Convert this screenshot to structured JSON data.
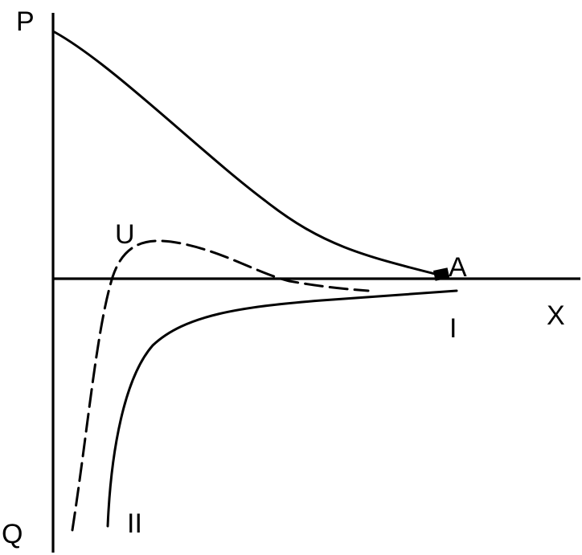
{
  "labels": {
    "p_axis": "P",
    "q_axis": "Q",
    "x_axis": "X",
    "point_a": "A",
    "curve_u": "U",
    "curve_i": "I",
    "curve_ii": "II"
  },
  "colors": {
    "ink": "#000000",
    "background": "#ffffff"
  }
}
